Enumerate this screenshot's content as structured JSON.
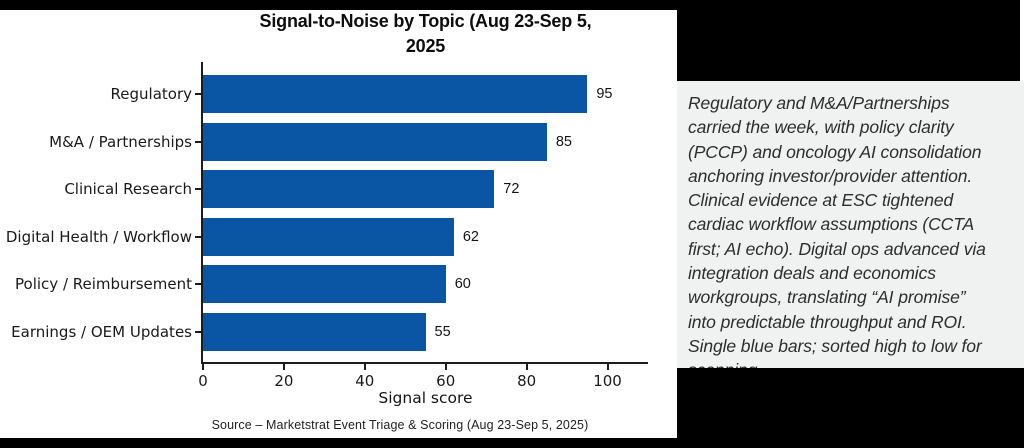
{
  "chart_data": {
    "type": "bar",
    "orientation": "horizontal",
    "title": "Signal-to-Noise by Topic (Aug 23-Sep 5, 2025",
    "title_lines": [
      "Signal-to-Noise by Topic (Aug 23-Sep 5,",
      "2025"
    ],
    "categories": [
      "Regulatory",
      "M&A / Partnerships",
      "Clinical Research",
      "Digital Health / Workflow",
      "Policy / Reimbursement",
      "Earnings / OEM Updates"
    ],
    "values": [
      95,
      85,
      72,
      62,
      60,
      55
    ],
    "value_labels_shown": true,
    "xlabel": "Signal score",
    "xticks": [
      0,
      20,
      40,
      60,
      80,
      100
    ],
    "xlim": [
      0,
      110
    ],
    "bar_color": "#0b56a4",
    "axis_color": "#1c1c1c",
    "grid": false,
    "legend": false,
    "source": "Source – Marketstrat Event Triage & Scoring (Aug 23-Sep 5, 2025)"
  },
  "commentary": {
    "background": "#f0f1f1",
    "lines": [
      "Regulatory and M&A/Partnerships",
      "carried the week, with policy clarity",
      "(PCCP) and oncology AI consolidation",
      "anchoring investor/provider attention.",
      "Clinical evidence at ESC tightened",
      "cardiac workflow assumptions (CCTA",
      "first; AI echo). Digital ops advanced via",
      "integration deals and economics",
      "workgroups, translating “AI promise”",
      "into predictable throughput and ROI.",
      "Single blue bars; sorted high to low for",
      "scanning."
    ]
  }
}
